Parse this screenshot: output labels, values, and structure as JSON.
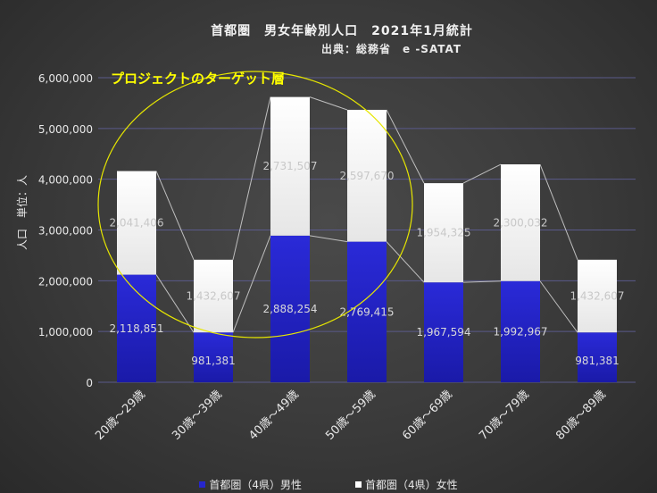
{
  "title": "首都圏　男女年齢別人口　2021年1月統計",
  "subtitle": "出典：総務省　e -SATAT",
  "annotation": "プロジェクトのターゲット層",
  "colors": {
    "male": "#2626cc",
    "male_light": "#7777f0",
    "female": "#ffffff",
    "female_shade": "#d9d9d9",
    "ellipse": "#e6e600",
    "gridline": "#5a5a8a",
    "connector": "#bfbfbf"
  },
  "chart_data": {
    "type": "bar",
    "stacked": true,
    "title": "首都圏　男女年齢別人口　2021年1月統計",
    "xlabel": "",
    "ylabel": "人口　単位：人",
    "ylim": [
      0,
      6000000
    ],
    "yticks": [
      "0",
      "1,000,000",
      "2,000,000",
      "3,000,000",
      "4,000,000",
      "5,000,000",
      "6,000,000"
    ],
    "categories": [
      "20歳～29歳",
      "30歳～39歳",
      "40歳～49歳",
      "50歳～59歳",
      "60歳～69歳",
      "70歳～79歳",
      "80歳～89歳"
    ],
    "series": [
      {
        "name": "首都圏（4県）男性",
        "values": [
          2118851,
          981381,
          2888254,
          2769415,
          1967594,
          1992967,
          981381
        ],
        "labels": [
          "2,118,851",
          "981,381",
          "2,888,254",
          "2,769,415",
          "1,967,594",
          "1,992,967",
          "981,381"
        ]
      },
      {
        "name": "首都圏（4県）女性",
        "values": [
          2041406,
          1432607,
          2731507,
          2597670,
          1954325,
          2300032,
          1432607
        ],
        "labels": [
          "2,041,406",
          "1,432,607",
          "2,731,507",
          "2,597,670",
          "1,954,325",
          "2,300,032",
          "1,432,607"
        ]
      }
    ],
    "legend_position": "bottom"
  }
}
